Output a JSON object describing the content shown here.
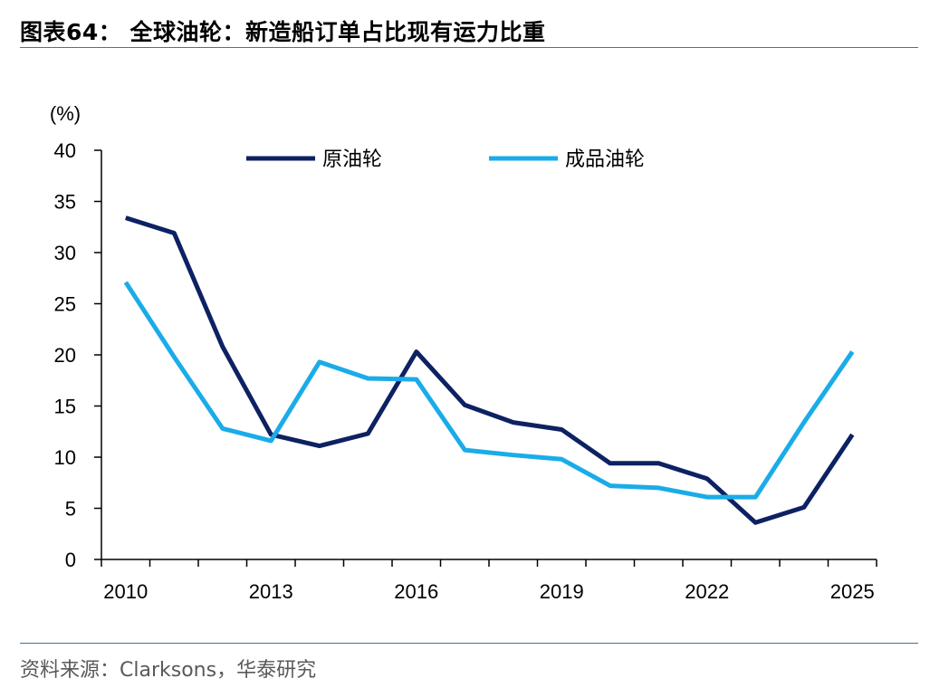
{
  "title": "图表64：  全球油轮：新造船订单占比现有运力比重",
  "source": "资料来源：Clarksons，华泰研究",
  "chart_data": {
    "type": "line",
    "title": "图表64：  全球油轮：新造船订单占比现有运力比重",
    "ylabel": "(%)",
    "xlabel": "",
    "ylim": [
      0,
      40
    ],
    "yticks": [
      0,
      5,
      10,
      15,
      20,
      25,
      30,
      35,
      40
    ],
    "xlim": [
      2010,
      2025
    ],
    "xtick_labels": [
      "2010",
      "2013",
      "2016",
      "2019",
      "2022",
      "2025"
    ],
    "x": [
      2010,
      2011,
      2012,
      2013,
      2014,
      2015,
      2016,
      2017,
      2018,
      2019,
      2020,
      2021,
      2022,
      2023,
      2024,
      2025
    ],
    "legend_position": "top",
    "grid": false,
    "series": [
      {
        "name": "原油轮",
        "color": "#0d2163",
        "values": [
          33.4,
          31.9,
          20.8,
          12.2,
          11.1,
          12.3,
          20.3,
          15.1,
          13.4,
          12.7,
          9.4,
          9.4,
          7.9,
          3.6,
          5.1,
          12.2
        ]
      },
      {
        "name": "成品油轮",
        "color": "#1aace8",
        "values": [
          27.1,
          19.8,
          12.8,
          11.6,
          19.3,
          17.7,
          17.6,
          10.7,
          10.2,
          9.8,
          7.2,
          7.0,
          6.1,
          6.1,
          13.4,
          20.3
        ]
      }
    ]
  }
}
